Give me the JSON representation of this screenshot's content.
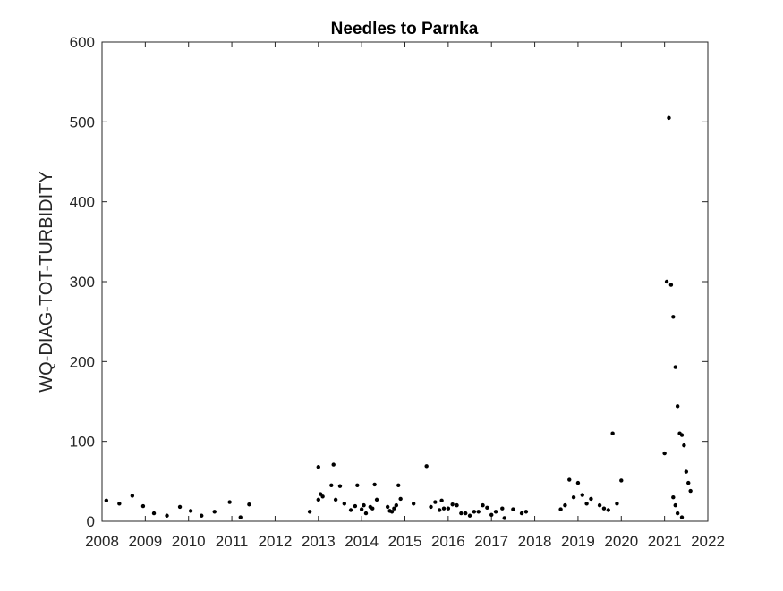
{
  "chart_data": {
    "type": "scatter",
    "title": "Needles to Parnka",
    "xlabel": "",
    "ylabel": "WQ-DIAG-TOT-TURBIDITY",
    "xlim": [
      2008,
      2022
    ],
    "ylim": [
      0,
      600
    ],
    "x_ticks": [
      "2008",
      "2009",
      "2010",
      "2011",
      "2012",
      "2013",
      "2014",
      "2015",
      "2016",
      "2017",
      "2018",
      "2019",
      "2020",
      "2021",
      "2022"
    ],
    "y_ticks": [
      "0",
      "100",
      "200",
      "300",
      "400",
      "500",
      "600"
    ],
    "grid": false,
    "marker_color": "#000000",
    "series": [
      {
        "x": [
          2008.1,
          2008.4,
          2008.7,
          2008.95,
          2009.2,
          2009.5,
          2009.8,
          2010.05,
          2010.3,
          2010.6,
          2010.95,
          2011.2,
          2011.4,
          2012.8,
          2013.0,
          2013.0,
          2013.05,
          2013.1,
          2013.3,
          2013.35,
          2013.4,
          2013.5,
          2013.6,
          2013.75,
          2013.85,
          2013.9,
          2014.0,
          2014.05,
          2014.1,
          2014.2,
          2014.25,
          2014.3,
          2014.35,
          2014.6,
          2014.65,
          2014.7,
          2014.75,
          2014.8,
          2014.85,
          2014.9,
          2015.2,
          2015.5,
          2015.6,
          2015.7,
          2015.8,
          2015.85,
          2015.9,
          2016.0,
          2016.1,
          2016.2,
          2016.3,
          2016.4,
          2016.5,
          2016.6,
          2016.7,
          2016.8,
          2016.9,
          2017.0,
          2017.1,
          2017.25,
          2017.3,
          2017.5,
          2017.7,
          2017.8,
          2018.6,
          2018.7,
          2018.8,
          2018.9,
          2019.0,
          2019.1,
          2019.2,
          2019.3,
          2019.5,
          2019.6,
          2019.7,
          2019.8,
          2019.9,
          2020.0,
          2021.0,
          2021.05,
          2021.1,
          2021.15,
          2021.2,
          2021.25,
          2021.3,
          2021.35,
          2021.4,
          2021.45,
          2021.5,
          2021.55,
          2021.6,
          2021.2,
          2021.25,
          2021.3,
          2021.4
        ],
        "y": [
          26,
          22,
          32,
          19,
          10,
          7,
          18,
          13,
          7,
          12,
          24,
          5,
          21,
          12,
          27,
          68,
          34,
          31,
          45,
          71,
          27,
          44,
          22,
          14,
          19,
          45,
          15,
          20,
          10,
          18,
          16,
          46,
          27,
          18,
          13,
          12,
          16,
          20,
          45,
          28,
          22,
          69,
          18,
          24,
          14,
          26,
          16,
          16,
          21,
          20,
          10,
          10,
          7,
          12,
          12,
          20,
          17,
          8,
          12,
          16,
          4,
          15,
          10,
          12,
          15,
          20,
          52,
          30,
          48,
          33,
          22,
          28,
          20,
          16,
          14,
          110,
          22,
          51,
          85,
          300,
          505,
          296,
          256,
          193,
          144,
          110,
          108,
          95,
          62,
          48,
          38,
          30,
          20,
          10,
          5
        ]
      }
    ]
  }
}
